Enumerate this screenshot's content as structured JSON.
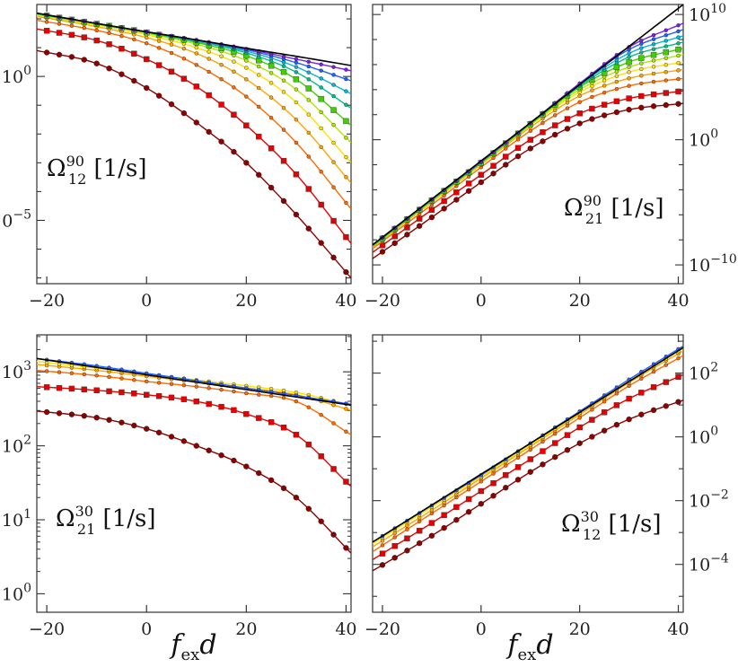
{
  "figure": {
    "xlabels": [
      {
        "base": "f",
        "sub": "ex",
        "tail": "d"
      },
      {
        "base": "f",
        "sub": "ex",
        "tail": "d"
      }
    ]
  },
  "chart_data": [
    {
      "type": "line",
      "id": "top-left",
      "panel_label": {
        "symbol": "Ω",
        "sub": "12",
        "sup": "90",
        "unit": "[1/s]"
      },
      "xlim": [
        -22,
        41
      ],
      "xticks": [
        -20,
        0,
        20,
        40
      ],
      "xticklabels": [
        "−20",
        "0",
        "20",
        "40"
      ],
      "ylog": true,
      "ylim_log10": [
        -7.2,
        2.5
      ],
      "yticks_log10": [
        0,
        -5
      ],
      "yticklabels": [
        {
          "base": "10",
          "exp": "0"
        },
        {
          "base": "10",
          "exp": "−5"
        }
      ],
      "y_axis_side": "left",
      "reference": {
        "color": "#000000",
        "x": [
          -22,
          -10,
          0,
          10,
          20,
          30,
          41
        ],
        "log10y": [
          2.2,
          1.84,
          1.55,
          1.27,
          0.98,
          0.7,
          0.38
        ]
      },
      "series": [
        {
          "color": "#8B0000",
          "marker": "circle",
          "x": [
            -22,
            -10,
            0,
            10,
            20,
            30,
            41
          ],
          "log10y": [
            0.9,
            0.45,
            -0.4,
            -1.6,
            -3.0,
            -4.8,
            -7.0
          ]
        },
        {
          "color": "#E80000",
          "marker": "square",
          "x": [
            -22,
            -10,
            0,
            10,
            20,
            30,
            41
          ],
          "log10y": [
            1.65,
            1.25,
            0.6,
            -0.35,
            -1.7,
            -3.4,
            -5.8
          ]
        },
        {
          "color": "#FF6A00",
          "marker": "dot",
          "x": [
            -22,
            -10,
            0,
            10,
            20,
            30,
            41
          ],
          "log10y": [
            1.95,
            1.6,
            1.15,
            0.4,
            -0.7,
            -2.3,
            -4.6
          ]
        },
        {
          "color": "#FFA500",
          "marker": "dot",
          "x": [
            -22,
            -10,
            0,
            10,
            20,
            30,
            41
          ],
          "log10y": [
            2.08,
            1.73,
            1.35,
            0.8,
            -0.1,
            -1.5,
            -3.7
          ]
        },
        {
          "color": "#FFE000",
          "marker": "dot",
          "x": [
            -22,
            -10,
            0,
            10,
            20,
            30,
            41
          ],
          "log10y": [
            2.12,
            1.79,
            1.45,
            1.0,
            0.3,
            -0.9,
            -3.0
          ]
        },
        {
          "color": "#B0E800",
          "marker": "dot",
          "x": [
            -22,
            -10,
            0,
            10,
            20,
            30,
            41
          ],
          "log10y": [
            2.15,
            1.81,
            1.5,
            1.12,
            0.55,
            -0.45,
            -2.3
          ]
        },
        {
          "color": "#3FD000",
          "marker": "square",
          "x": [
            -22,
            -10,
            0,
            10,
            20,
            30,
            41
          ],
          "log10y": [
            2.17,
            1.83,
            1.53,
            1.18,
            0.72,
            -0.1,
            -1.7
          ]
        },
        {
          "color": "#00C08A",
          "marker": "dot",
          "x": [
            -22,
            -10,
            0,
            10,
            20,
            30,
            41
          ],
          "log10y": [
            2.18,
            1.84,
            1.54,
            1.22,
            0.82,
            0.15,
            -1.1
          ]
        },
        {
          "color": "#0AB4D8",
          "marker": "dot",
          "x": [
            -22,
            -10,
            0,
            10,
            20,
            30,
            41
          ],
          "log10y": [
            2.19,
            1.84,
            1.55,
            1.24,
            0.88,
            0.33,
            -0.6
          ]
        },
        {
          "color": "#2060FF",
          "marker": "dot",
          "x": [
            -22,
            -10,
            0,
            10,
            20,
            30,
            41
          ],
          "log10y": [
            2.2,
            1.84,
            1.55,
            1.26,
            0.93,
            0.48,
            -0.15
          ]
        },
        {
          "color": "#7A20E0",
          "marker": "dot",
          "x": [
            -22,
            -10,
            0,
            10,
            20,
            30,
            41
          ],
          "log10y": [
            2.2,
            1.84,
            1.55,
            1.27,
            0.96,
            0.6,
            0.2
          ]
        }
      ]
    },
    {
      "type": "line",
      "id": "top-right",
      "panel_label": {
        "symbol": "Ω",
        "sub": "21",
        "sup": "90",
        "unit": "[1/s]"
      },
      "xlim": [
        -22,
        41
      ],
      "xticks": [
        -20,
        0,
        20,
        40
      ],
      "xticklabels": [
        "−20",
        "0",
        "20",
        "40"
      ],
      "ylog": true,
      "ylim_log10": [
        -11.5,
        10.8
      ],
      "yticks_log10": [
        10,
        0,
        -10
      ],
      "yticklabels": [
        {
          "base": "10",
          "exp": "10"
        },
        {
          "base": "10",
          "exp": "0"
        },
        {
          "base": "10",
          "exp": "−10"
        }
      ],
      "y_axis_side": "right",
      "reference": {
        "color": "#000000",
        "x": [
          -22,
          41
        ],
        "log10y": [
          -8.4,
          10.8
        ]
      },
      "series": [
        {
          "color": "#8B0000",
          "marker": "circle",
          "x": [
            -22,
            -10,
            0,
            10,
            20,
            30,
            41
          ],
          "log10y": [
            -9.5,
            -6.2,
            -3.4,
            -0.7,
            1.3,
            2.4,
            2.9
          ]
        },
        {
          "color": "#E80000",
          "marker": "square",
          "x": [
            -22,
            -10,
            0,
            10,
            20,
            30,
            41
          ],
          "log10y": [
            -9.0,
            -5.6,
            -2.8,
            0.0,
            2.1,
            3.3,
            3.9
          ]
        },
        {
          "color": "#FF6A00",
          "marker": "dot",
          "x": [
            -22,
            -10,
            0,
            10,
            20,
            30,
            41
          ],
          "log10y": [
            -8.7,
            -5.2,
            -2.2,
            0.7,
            3.0,
            4.3,
            4.9
          ]
        },
        {
          "color": "#FFA500",
          "marker": "dot",
          "x": [
            -22,
            -10,
            0,
            10,
            20,
            30,
            41
          ],
          "log10y": [
            -8.6,
            -5.0,
            -2.0,
            1.0,
            3.5,
            4.9,
            5.6
          ]
        },
        {
          "color": "#FFE000",
          "marker": "dot",
          "x": [
            -22,
            -10,
            0,
            10,
            20,
            30,
            41
          ],
          "log10y": [
            -8.55,
            -4.95,
            -1.95,
            1.15,
            3.8,
            5.4,
            6.2
          ]
        },
        {
          "color": "#B0E800",
          "marker": "dot",
          "x": [
            -22,
            -10,
            0,
            10,
            20,
            30,
            41
          ],
          "log10y": [
            -8.5,
            -4.9,
            -1.9,
            1.2,
            4.0,
            5.8,
            6.8
          ]
        },
        {
          "color": "#3FD000",
          "marker": "square",
          "x": [
            -22,
            -10,
            0,
            10,
            20,
            30,
            41
          ],
          "log10y": [
            -8.5,
            -4.85,
            -1.85,
            1.25,
            4.2,
            6.2,
            7.3
          ]
        },
        {
          "color": "#00C08A",
          "marker": "dot",
          "x": [
            -22,
            -10,
            0,
            10,
            20,
            30,
            41
          ],
          "log10y": [
            -8.45,
            -4.8,
            -1.8,
            1.3,
            4.3,
            6.6,
            7.8
          ]
        },
        {
          "color": "#0AB4D8",
          "marker": "dot",
          "x": [
            -22,
            -10,
            0,
            10,
            20,
            30,
            41
          ],
          "log10y": [
            -8.42,
            -4.78,
            -1.78,
            1.32,
            4.4,
            6.9,
            8.3
          ]
        },
        {
          "color": "#2060FF",
          "marker": "dot",
          "x": [
            -22,
            -10,
            0,
            10,
            20,
            30,
            41
          ],
          "log10y": [
            -8.4,
            -4.76,
            -1.76,
            1.34,
            4.45,
            7.2,
            8.8
          ]
        },
        {
          "color": "#7A20E0",
          "marker": "dot",
          "x": [
            -22,
            -10,
            0,
            10,
            20,
            30,
            41
          ],
          "log10y": [
            -8.4,
            -4.75,
            -1.75,
            1.35,
            4.5,
            7.4,
            9.3
          ]
        }
      ]
    },
    {
      "type": "line",
      "id": "bottom-left",
      "panel_label": {
        "symbol": "Ω",
        "sub": "21",
        "sup": "30",
        "unit": "[1/s]"
      },
      "xlim": [
        -22,
        41
      ],
      "xticks": [
        -20,
        0,
        20,
        40
      ],
      "xticklabels": [
        "−20",
        "0",
        "20",
        "40"
      ],
      "ylog": true,
      "ylim_log10": [
        -0.25,
        3.5
      ],
      "yticks_log10": [
        3,
        2,
        1,
        0
      ],
      "yticklabels": [
        {
          "base": "10",
          "exp": "3"
        },
        {
          "base": "10",
          "exp": "2"
        },
        {
          "base": "10",
          "exp": "1"
        },
        {
          "base": "10",
          "exp": "0"
        }
      ],
      "y_axis_side": "left",
      "reference": {
        "color": "#000000",
        "x": [
          -22,
          41
        ],
        "log10y": [
          3.18,
          2.55
        ]
      },
      "series": [
        {
          "color": "#8B0000",
          "marker": "circle",
          "x": [
            -22,
            -10,
            0,
            10,
            20,
            30,
            41
          ],
          "log10y": [
            2.47,
            2.38,
            2.23,
            2.0,
            1.72,
            1.3,
            0.55
          ]
        },
        {
          "color": "#E80000",
          "marker": "square",
          "x": [
            -22,
            -10,
            0,
            10,
            20,
            30,
            41
          ],
          "log10y": [
            2.8,
            2.75,
            2.69,
            2.6,
            2.43,
            2.15,
            1.45
          ]
        },
        {
          "color": "#FF6A00",
          "marker": "dot",
          "x": [
            -22,
            -10,
            0,
            10,
            20,
            30,
            41
          ],
          "log10y": [
            3.02,
            2.95,
            2.87,
            2.8,
            2.71,
            2.6,
            2.15
          ]
        },
        {
          "color": "#FFA500",
          "marker": "dot",
          "x": [
            -22,
            -10,
            0,
            10,
            20,
            30,
            41
          ],
          "log10y": [
            3.1,
            3.02,
            2.94,
            2.86,
            2.78,
            2.69,
            2.48
          ]
        },
        {
          "color": "#FFE000",
          "marker": "dot",
          "x": [
            -22,
            -10,
            0,
            10,
            20,
            30,
            41
          ],
          "log10y": [
            3.14,
            3.05,
            2.97,
            2.89,
            2.81,
            2.72,
            2.55
          ]
        },
        {
          "color": "#2060FF",
          "marker": "dot",
          "x": [
            -22,
            -10,
            0,
            10,
            20,
            30,
            41
          ],
          "log10y": [
            3.18,
            3.08,
            2.98,
            2.88,
            2.78,
            2.68,
            2.56
          ]
        }
      ]
    },
    {
      "type": "line",
      "id": "bottom-right",
      "panel_label": {
        "symbol": "Ω",
        "sub": "12",
        "sup": "30",
        "unit": "[1/s]"
      },
      "xlim": [
        -22,
        41
      ],
      "xticks": [
        -20,
        0,
        20,
        40
      ],
      "xticklabels": [
        "−20",
        "0",
        "20",
        "40"
      ],
      "ylog": true,
      "ylim_log10": [
        -5.5,
        3.2
      ],
      "yticks_log10": [
        2,
        0,
        -2,
        -4
      ],
      "yticklabels": [
        {
          "base": "10",
          "exp": "2"
        },
        {
          "base": "10",
          "exp": "0"
        },
        {
          "base": "10",
          "exp": "−2"
        },
        {
          "base": "10",
          "exp": "−4"
        }
      ],
      "y_axis_side": "right",
      "reference": {
        "color": "#000000",
        "x": [
          -22,
          41
        ],
        "log10y": [
          -3.3,
          2.8
        ]
      },
      "series": [
        {
          "color": "#8B0000",
          "marker": "circle",
          "x": [
            -22,
            -10,
            0,
            10,
            20,
            30,
            41
          ],
          "log10y": [
            -4.2,
            -3.1,
            -2.1,
            -1.1,
            -0.2,
            0.55,
            1.15
          ]
        },
        {
          "color": "#E80000",
          "marker": "square",
          "x": [
            -22,
            -10,
            0,
            10,
            20,
            30,
            41
          ],
          "log10y": [
            -3.85,
            -2.7,
            -1.7,
            -0.7,
            0.3,
            1.2,
            1.95
          ]
        },
        {
          "color": "#FF6A00",
          "marker": "dot",
          "x": [
            -22,
            -10,
            0,
            10,
            20,
            30,
            41
          ],
          "log10y": [
            -3.6,
            -2.4,
            -1.4,
            -0.4,
            0.6,
            1.6,
            2.55
          ]
        },
        {
          "color": "#FFA500",
          "marker": "dot",
          "x": [
            -22,
            -10,
            0,
            10,
            20,
            30,
            41
          ],
          "log10y": [
            -3.45,
            -2.3,
            -1.3,
            -0.3,
            0.7,
            1.7,
            2.7
          ]
        },
        {
          "color": "#FFE000",
          "marker": "dot",
          "x": [
            -22,
            -10,
            0,
            10,
            20,
            30,
            41
          ],
          "log10y": [
            -3.35,
            -2.2,
            -1.25,
            -0.25,
            0.75,
            1.75,
            2.78
          ]
        },
        {
          "color": "#2060FF",
          "marker": "dot",
          "x": [
            -22,
            -10,
            0,
            10,
            20,
            30,
            41
          ],
          "log10y": [
            -3.3,
            -2.15,
            -1.2,
            -0.2,
            0.8,
            1.8,
            2.85
          ]
        }
      ]
    }
  ]
}
